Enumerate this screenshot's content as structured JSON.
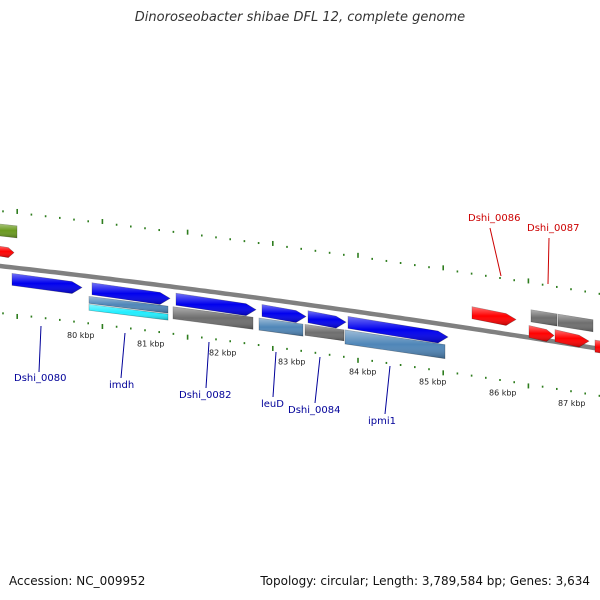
{
  "title": "Dinoroseobacter shibae DFL 12, complete genome",
  "footer": {
    "accession": "Accession: NC_009952",
    "summary": "Topology: circular; Length: 3,789,584 bp; Genes: 3,634"
  },
  "colors": {
    "backbone": "#808080",
    "tick": "#2e7d1e",
    "label_forward": "#cc0000",
    "label_reverse": "#000099",
    "gene_blue": "#0000ee",
    "gene_red": "#ff0000",
    "gene_gray": "#6e6e6e",
    "gene_steel": "#4f86b8",
    "gene_cyan": "#22eeff",
    "gene_olive": "#6a9a1e"
  },
  "kbp_labels": [
    "80 kbp",
    "81 kbp",
    "82 kbp",
    "83 kbp",
    "84 kbp",
    "85 kbp",
    "86 kbp",
    "87 kbp"
  ],
  "gene_labels": [
    {
      "text": "Dshi_0080",
      "strand": "reverse"
    },
    {
      "text": "imdh",
      "strand": "reverse"
    },
    {
      "text": "Dshi_0082",
      "strand": "reverse"
    },
    {
      "text": "leuD",
      "strand": "reverse"
    },
    {
      "text": "Dshi_0084",
      "strand": "reverse"
    },
    {
      "text": "ipmi1",
      "strand": "reverse"
    },
    {
      "text": "Dshi_0086",
      "strand": "forward"
    },
    {
      "text": "Dshi_0087",
      "strand": "forward"
    }
  ]
}
